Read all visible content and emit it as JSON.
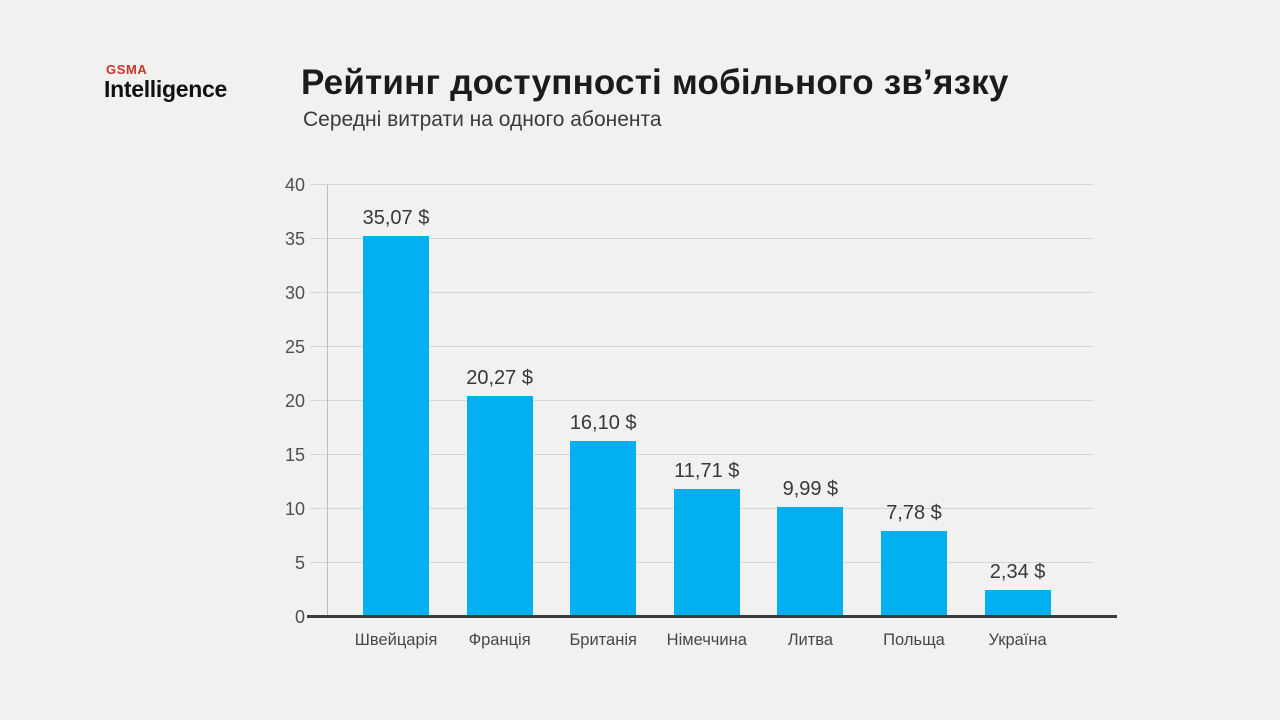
{
  "page": {
    "background_color": "#F1F1EF"
  },
  "logo": {
    "brand": "GSMA",
    "name": "Intelligence",
    "brand_color": "#C9352C"
  },
  "header": {
    "title": "Рейтинг доступності мобільного зв’язку",
    "subtitle": "Середні витрати на одного абонента"
  },
  "chart_data": {
    "type": "bar",
    "title": "Рейтинг доступності мобільного зв’язку",
    "subtitle": "Середні витрати на одного абонента",
    "categories": [
      "Швейцарія",
      "Франція",
      "Британія",
      "Німеччина",
      "Литва",
      "Польща",
      "Україна"
    ],
    "values": [
      35.07,
      20.27,
      16.1,
      11.71,
      9.99,
      7.78,
      2.34
    ],
    "value_labels": [
      "35,07 $",
      "20,27 $",
      "16,10 $",
      "11,71 $",
      "9,99 $",
      "7,78 $",
      "2,34 $"
    ],
    "unit": "$",
    "xlabel": "",
    "ylabel": "",
    "ylim": [
      0,
      40
    ],
    "yticks": [
      0,
      5,
      10,
      15,
      20,
      25,
      30,
      35,
      40
    ],
    "grid": true,
    "legend": "none",
    "bar_color": "#00B0F0",
    "baseline_color": "#3C3C3C",
    "gridline_color": "#D5D5D3"
  }
}
